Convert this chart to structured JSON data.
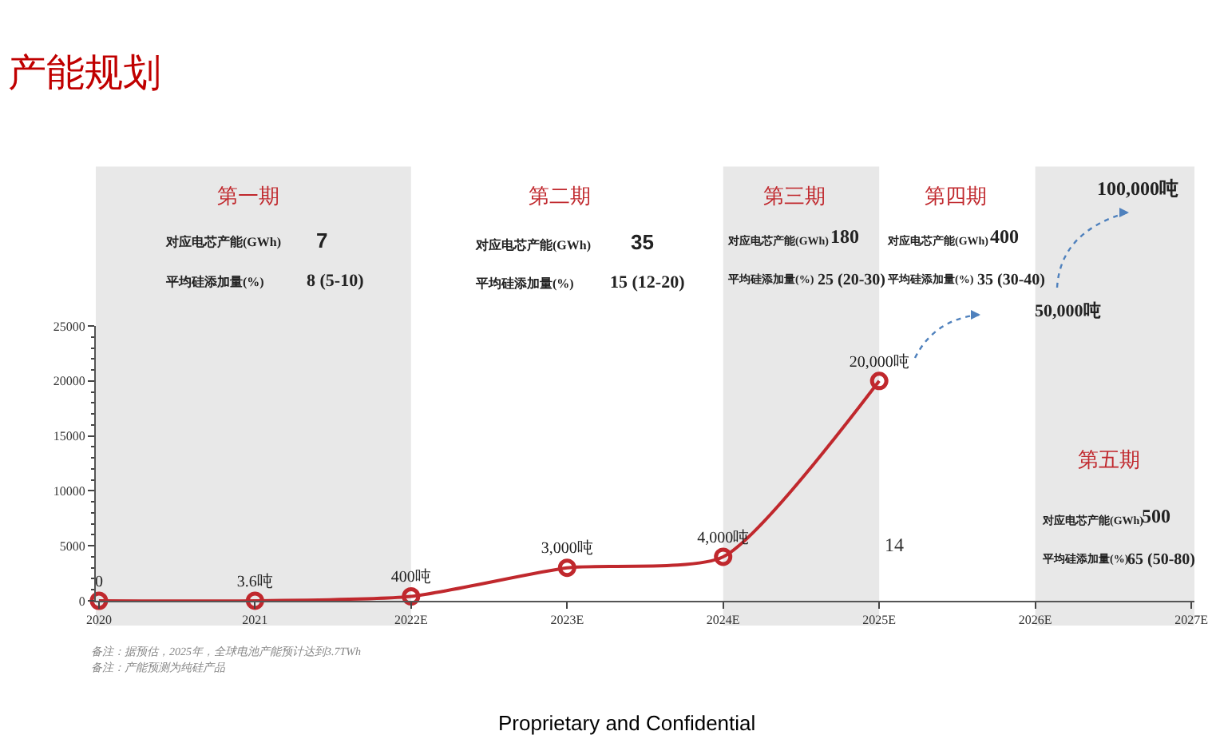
{
  "chart_data": {
    "type": "line",
    "title": "产能规划",
    "categories": [
      "2020",
      "2021",
      "2022E",
      "2023E",
      "2024E",
      "2025E",
      "2026E",
      "2027E"
    ],
    "series": [
      {
        "color": "#c0282d",
        "values": [
          0,
          3.6,
          400,
          3000,
          4000,
          20000,
          null,
          null
        ],
        "value_labels": [
          "0",
          "3.6吨",
          "400吨",
          "3,000吨",
          "4,000吨",
          "20,000吨",
          null,
          null
        ]
      }
    ],
    "ylim": [
      0,
      25000
    ],
    "yticks": [
      0,
      5000,
      10000,
      15000,
      20000,
      25000
    ],
    "marker": "circle",
    "line_style": "solid",
    "grid": false,
    "bands": [
      {
        "axis": "x",
        "from": "2020",
        "to": "2022E",
        "color": "#e8e8e8"
      },
      {
        "axis": "x",
        "from": "2024E",
        "to": "2025E",
        "color": "#e8e8e8"
      },
      {
        "axis": "x",
        "from": "2026E",
        "to": "2027E",
        "color": "#e8e8e8"
      }
    ],
    "annotations": [
      "第一期",
      "对应电芯产能(GWh)",
      "7",
      "平均硅添加量(%)",
      "8 (5-10)",
      "第二期",
      "对应电芯产能(GWh)",
      "35",
      "平均硅添加量(%)",
      "15 (12-20)",
      "第三期",
      "对应电芯产能(GWh)",
      "180",
      "平均硅添加量(%)",
      "25 (20-30)",
      "第四期",
      "对应电芯产能(GWh)",
      "400",
      "平均硅添加量(%)",
      "35 (30-40)",
      "第五期",
      "对应电芯产能(GWh)",
      "500",
      "平均硅添加量(%)",
      "65 (50-80)",
      "50,000吨",
      "100,000吨",
      "14",
      "备注：据预估，2025年，全球电池产能预计达到3.7TWh",
      "备注：产能预测为纯硅产品",
      "Proprietary and Confidential"
    ]
  }
}
